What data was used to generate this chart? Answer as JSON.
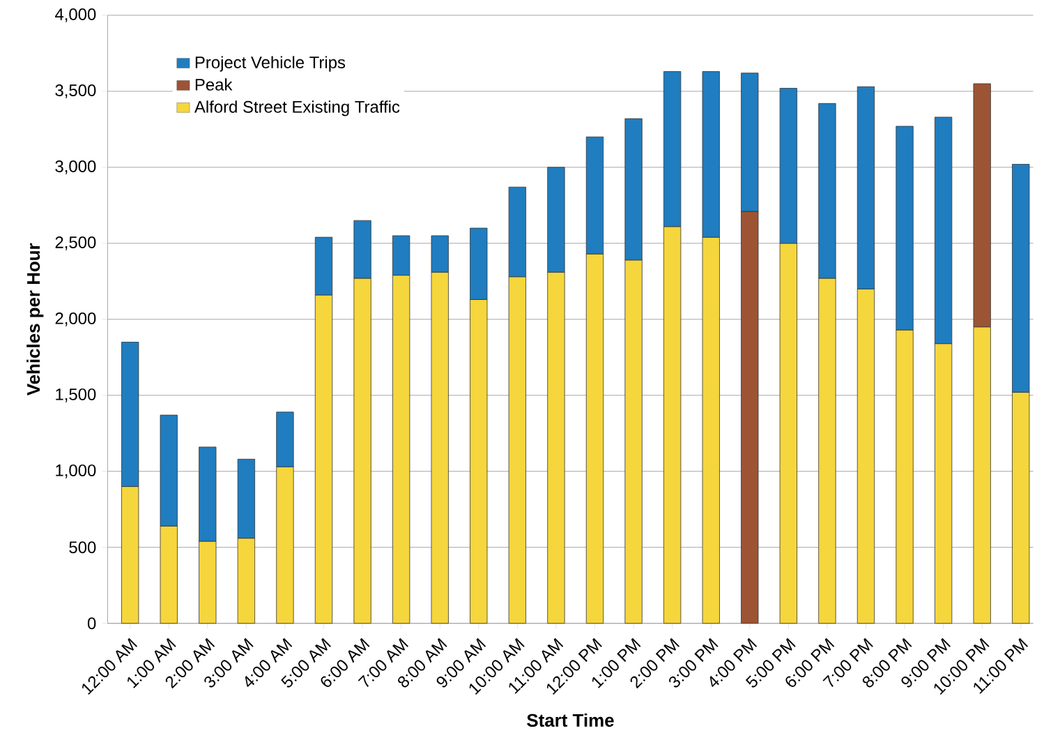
{
  "chart_data": {
    "type": "bar",
    "stacked": true,
    "xlabel": "Start Time",
    "ylabel": "Vehicles per Hour",
    "categories": [
      "12:00 AM",
      "1:00 AM",
      "2:00 AM",
      "3:00 AM",
      "4:00 AM",
      "5:00 AM",
      "6:00 AM",
      "7:00 AM",
      "8:00 AM",
      "9:00 AM",
      "10:00 AM",
      "11:00 AM",
      "12:00 PM",
      "1:00 PM",
      "2:00 PM",
      "3:00 PM",
      "4:00 PM",
      "5:00 PM",
      "6:00 PM",
      "7:00 PM",
      "8:00 PM",
      "9:00 PM",
      "10:00 PM",
      "11:00 PM"
    ],
    "series": [
      {
        "name": "Alford Street Existing Traffic",
        "color": "#f5d63c",
        "values": [
          900,
          640,
          540,
          560,
          1030,
          2160,
          2270,
          2290,
          2310,
          2130,
          2280,
          2310,
          2430,
          2390,
          2610,
          2540,
          null,
          2500,
          2270,
          2200,
          1930,
          1840,
          1950,
          1520
        ]
      },
      {
        "name": "Peak",
        "color": "#9c5434",
        "values": [
          null,
          null,
          null,
          null,
          null,
          null,
          null,
          null,
          null,
          null,
          null,
          null,
          null,
          null,
          null,
          null,
          2710,
          null,
          null,
          null,
          null,
          null,
          1600,
          null
        ]
      },
      {
        "name": "Project Vehicle Trips",
        "color": "#1f7dc0",
        "values": [
          950,
          730,
          620,
          520,
          360,
          380,
          380,
          260,
          240,
          470,
          590,
          690,
          770,
          930,
          1020,
          1090,
          910,
          1020,
          1150,
          1330,
          1340,
          1490,
          null,
          1500
        ]
      }
    ],
    "ylim": [
      0,
      4000
    ],
    "yticks": [
      0,
      500,
      {
        "value": 1000,
        "label": "1,000"
      },
      {
        "value": 1500,
        "label": "1,500"
      },
      {
        "value": 2000,
        "label": "2,000"
      },
      {
        "value": 2500,
        "label": "2,500"
      },
      {
        "value": 3000,
        "label": "3,000"
      },
      {
        "value": 3500,
        "label": "3,500"
      },
      {
        "value": 4000,
        "label": "4,000"
      }
    ],
    "grid": "y",
    "legend": "top left"
  }
}
